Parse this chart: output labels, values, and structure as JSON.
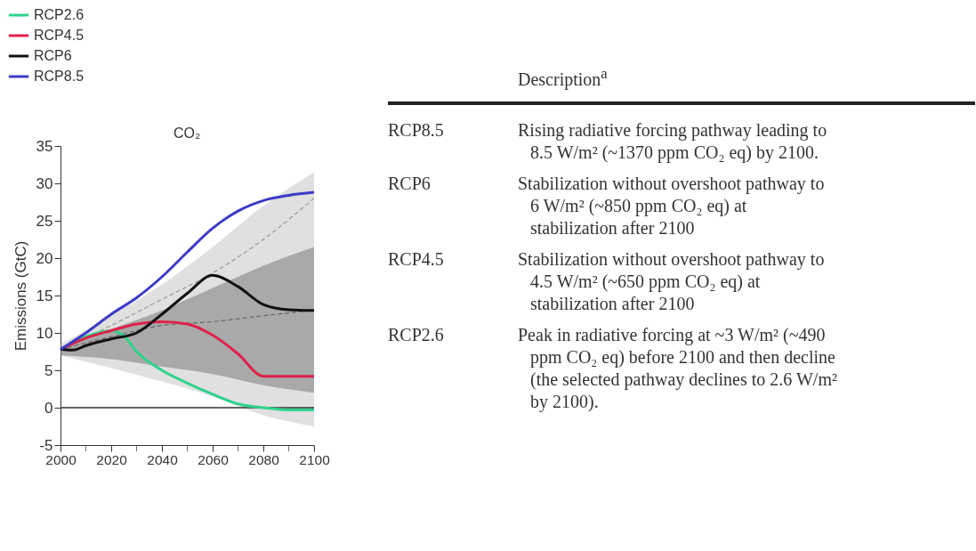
{
  "chart_data": [
    {
      "type": "line",
      "title": "CO₂",
      "ylabel": "Emissions (GtC)",
      "legend": "top left",
      "xlim": [
        2000,
        2100
      ],
      "ylim": [
        -5,
        35
      ],
      "xticks": [
        2000,
        {
          "value": 2010,
          "label": null
        },
        2020,
        {
          "value": 2030,
          "label": null
        },
        2040,
        {
          "value": 2050,
          "label": null
        },
        2060,
        {
          "value": 2070,
          "label": null
        },
        2080,
        {
          "value": 2090,
          "label": null
        },
        2100
      ],
      "yticks": [
        -5,
        0,
        5,
        10,
        15,
        20,
        25,
        30,
        35
      ],
      "ref_lines": [
        {
          "axis": "y",
          "value": 0,
          "color": "#333333"
        }
      ],
      "series": [
        {
          "type": "line",
          "line_style": "dashed",
          "color": "#999999",
          "x": [
            2000,
            2020,
            2040,
            2060,
            2080,
            2100
          ],
          "values": [
            8,
            11,
            14.5,
            18,
            22.5,
            28
          ],
          "lower": [
            7,
            5.3,
            3.5,
            1.5,
            -1,
            -2.5
          ],
          "upper": [
            8.5,
            12.3,
            16.5,
            21.5,
            27,
            31.5
          ]
        },
        {
          "type": "line",
          "line_style": "dashed",
          "color": "#666666",
          "x": [
            2000,
            2020,
            2040,
            2060,
            2080,
            2100
          ],
          "values": [
            7.8,
            9.5,
            11,
            11.5,
            12.3,
            13
          ],
          "lower": [
            7,
            6.5,
            5.5,
            4.5,
            3,
            2
          ],
          "upper": [
            8,
            10.5,
            13,
            16,
            19,
            21.5
          ]
        },
        {
          "name": "RCP2.6",
          "color": "#2ed38a",
          "x": [
            2000,
            2010,
            2020,
            2025,
            2030,
            2040,
            2050,
            2060,
            2070,
            2080,
            2090,
            2100
          ],
          "values": [
            7.8,
            9.5,
            10.3,
            9.6,
            7.5,
            5,
            3.3,
            1.8,
            0.5,
            0,
            -0.3,
            -0.3
          ]
        },
        {
          "name": "RCP4.5",
          "color": "#e0214a",
          "x": [
            2000,
            2010,
            2020,
            2030,
            2040,
            2050,
            2060,
            2070,
            2080,
            2090,
            2100
          ],
          "values": [
            7.8,
            9.3,
            10.3,
            11.2,
            11.5,
            11.2,
            9.7,
            7.2,
            4.2,
            4.2,
            4.2
          ]
        },
        {
          "name": "RCP6",
          "color": "#111111",
          "x": [
            2000,
            2005,
            2010,
            2020,
            2030,
            2040,
            2050,
            2060,
            2070,
            2080,
            2090,
            2100
          ],
          "values": [
            7.8,
            7.7,
            8.3,
            9.2,
            10,
            12.5,
            15.3,
            17.7,
            16.2,
            13.8,
            13.1,
            13
          ]
        },
        {
          "name": "RCP8.5",
          "color": "#3b3bc8",
          "x": [
            2000,
            2010,
            2020,
            2030,
            2040,
            2050,
            2060,
            2070,
            2080,
            2090,
            2100
          ],
          "values": [
            7.8,
            10,
            12.5,
            14.7,
            17.5,
            20.8,
            24,
            26.3,
            27.7,
            28.4,
            28.8
          ]
        }
      ]
    },
    {
      "type": "other",
      "annotations": [
        "Description$^{a}$",
        "RCP8.5",
        "Rising radiative forcing pathway leading to 8.5 W/m² (~1370 ppm CO₂ eq) by 2100.",
        "RCP6",
        "Stabilization without overshoot pathway to 6 W/m² (~850 ppm CO₂ eq) at stabilization after 2100",
        "RCP4.5",
        "Stabilization without overshoot pathway to 4.5 W/m² (~650 ppm CO₂ eq) at stabilization after 2100",
        "RCP2.6",
        "Peak in radiative forcing at ~3 W/m² (~490 ppm CO₂ eq) before 2100 and then decline (the selected pathway declines to 2.6 W/m² by 2100)."
      ]
    }
  ]
}
